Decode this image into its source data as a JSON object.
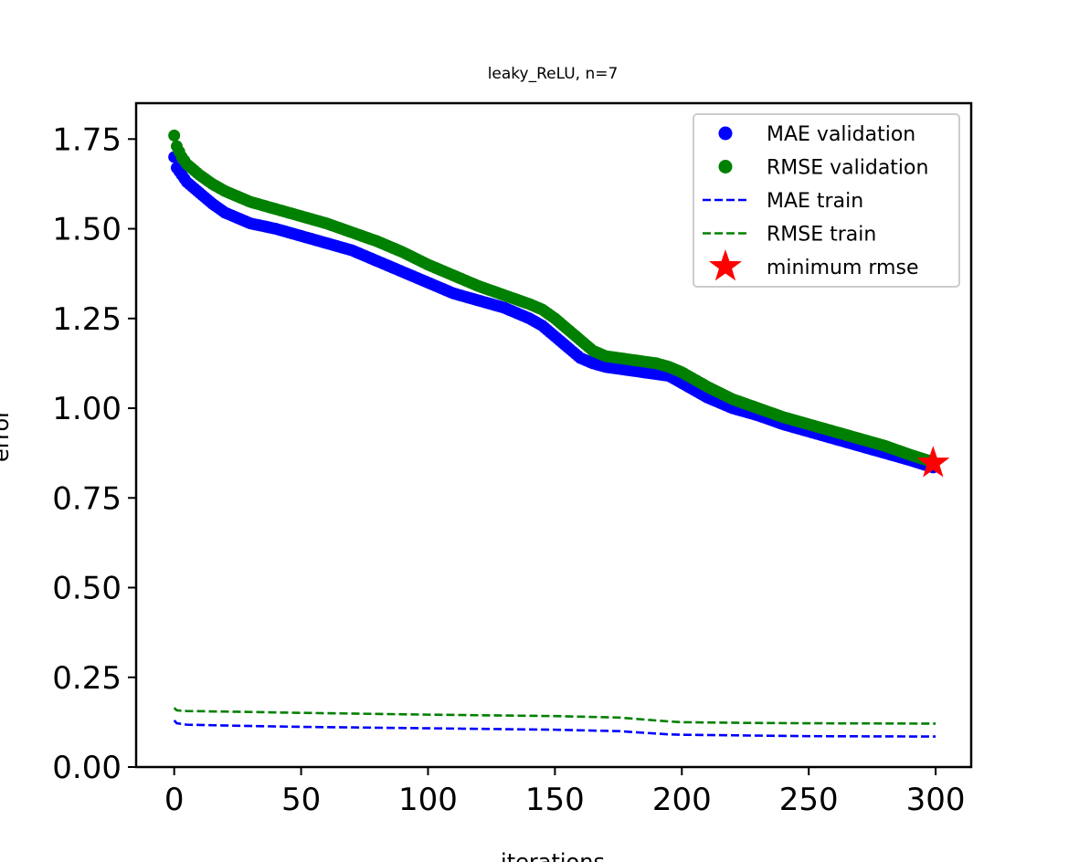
{
  "chart_data": {
    "type": "line",
    "title": "leaky_ReLU, n=7",
    "xlabel": "iterations",
    "ylabel": "error",
    "xlim": [
      -15,
      314
    ],
    "ylim": [
      0,
      1.85
    ],
    "xticks": [
      0,
      50,
      100,
      150,
      200,
      250,
      300
    ],
    "xtick_labels": [
      "0",
      "50",
      "100",
      "150",
      "200",
      "250",
      "300"
    ],
    "yticks": [
      0,
      0.25,
      0.5,
      0.75,
      1.0,
      1.25,
      1.5,
      1.75
    ],
    "ytick_labels": [
      "0.00",
      "0.25",
      "0.50",
      "0.75",
      "1.00",
      "1.25",
      "1.50",
      "1.75"
    ],
    "grid": false,
    "legend_position": "upper right",
    "series": [
      {
        "name": "MAE validation",
        "style": "dots",
        "color": "#0000ff",
        "x": [
          0,
          1,
          2,
          3,
          5,
          10,
          15,
          20,
          25,
          30,
          40,
          50,
          60,
          70,
          80,
          90,
          100,
          110,
          120,
          130,
          140,
          145,
          150,
          155,
          160,
          165,
          170,
          175,
          180,
          190,
          195,
          200,
          210,
          220,
          230,
          240,
          250,
          260,
          270,
          280,
          290,
          299
        ],
        "y": [
          1.7,
          1.67,
          1.66,
          1.65,
          1.63,
          1.6,
          1.57,
          1.545,
          1.53,
          1.515,
          1.5,
          1.48,
          1.46,
          1.44,
          1.41,
          1.38,
          1.35,
          1.32,
          1.3,
          1.28,
          1.25,
          1.23,
          1.2,
          1.17,
          1.14,
          1.125,
          1.115,
          1.11,
          1.105,
          1.095,
          1.09,
          1.07,
          1.03,
          1.0,
          0.98,
          0.955,
          0.935,
          0.915,
          0.895,
          0.875,
          0.855,
          0.835
        ]
      },
      {
        "name": "RMSE validation",
        "style": "dots",
        "color": "#008000",
        "x": [
          0,
          1,
          2,
          3,
          5,
          10,
          15,
          20,
          25,
          30,
          40,
          50,
          60,
          70,
          80,
          90,
          100,
          110,
          120,
          130,
          140,
          145,
          150,
          155,
          160,
          165,
          170,
          175,
          180,
          190,
          195,
          200,
          210,
          220,
          230,
          240,
          250,
          260,
          270,
          280,
          290,
          299
        ],
        "y": [
          1.76,
          1.73,
          1.715,
          1.7,
          1.68,
          1.65,
          1.625,
          1.605,
          1.59,
          1.575,
          1.555,
          1.535,
          1.515,
          1.49,
          1.465,
          1.435,
          1.4,
          1.37,
          1.34,
          1.315,
          1.29,
          1.275,
          1.25,
          1.22,
          1.19,
          1.16,
          1.145,
          1.14,
          1.135,
          1.125,
          1.115,
          1.1,
          1.06,
          1.025,
          1.0,
          0.975,
          0.955,
          0.935,
          0.915,
          0.895,
          0.87,
          0.85
        ]
      },
      {
        "name": "MAE train",
        "style": "dashed",
        "color": "#0000ff",
        "x": [
          0,
          1,
          5,
          25,
          50,
          100,
          150,
          175,
          195,
          200,
          225,
          250,
          300
        ],
        "y": [
          0.13,
          0.122,
          0.118,
          0.115,
          0.112,
          0.108,
          0.104,
          0.1,
          0.091,
          0.09,
          0.088,
          0.086,
          0.085
        ]
      },
      {
        "name": "RMSE train",
        "style": "dashed",
        "color": "#008000",
        "x": [
          0,
          1,
          5,
          25,
          50,
          100,
          150,
          175,
          195,
          200,
          225,
          250,
          300
        ],
        "y": [
          0.165,
          0.158,
          0.156,
          0.154,
          0.151,
          0.146,
          0.142,
          0.138,
          0.127,
          0.125,
          0.123,
          0.122,
          0.121
        ]
      },
      {
        "name": "minimum rmse",
        "style": "star",
        "color": "#ff0000",
        "x": [
          299
        ],
        "y": [
          0.847
        ]
      }
    ]
  }
}
